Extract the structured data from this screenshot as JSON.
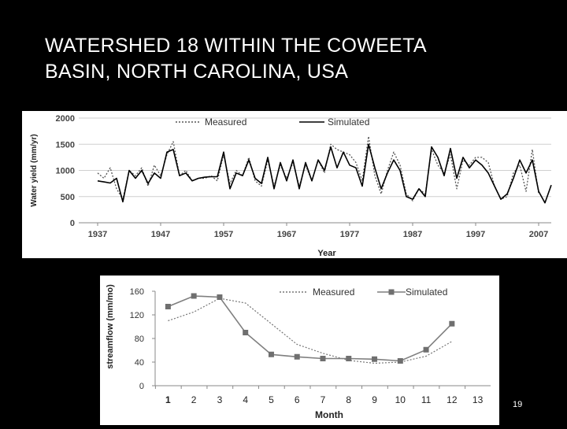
{
  "slide": {
    "title_line1": "WATERSHED 18 WITHIN THE COWEETA",
    "title_line2": "BASIN, NORTH CAROLINA, USA",
    "page_number": "19"
  },
  "chart_data": [
    {
      "type": "line",
      "title": "",
      "xlabel": "Year",
      "ylabel": "Water yield (mm/yr)",
      "xlim": [
        1934,
        2009
      ],
      "ylim": [
        0,
        2000
      ],
      "xticks": [
        1937,
        1947,
        1957,
        1967,
        1977,
        1987,
        1997,
        2007
      ],
      "yticks": [
        0,
        500,
        1000,
        1500,
        2000
      ],
      "grid": true,
      "legend": "top",
      "series": [
        {
          "name": "Measured",
          "style": "dotted",
          "color": "#555555",
          "points": [
            [
              1937,
              950
            ],
            [
              1938,
              850
            ],
            [
              1939,
              1050
            ],
            [
              1940,
              650
            ],
            [
              1941,
              450
            ],
            [
              1942,
              1000
            ],
            [
              1943,
              900
            ],
            [
              1944,
              1050
            ],
            [
              1945,
              700
            ],
            [
              1946,
              1100
            ],
            [
              1947,
              900
            ],
            [
              1948,
              1300
            ],
            [
              1949,
              1550
            ],
            [
              1950,
              900
            ],
            [
              1951,
              1000
            ],
            [
              1952,
              800
            ],
            [
              1953,
              850
            ],
            [
              1954,
              850
            ],
            [
              1955,
              900
            ],
            [
              1956,
              800
            ],
            [
              1957,
              1300
            ],
            [
              1958,
              750
            ],
            [
              1959,
              1000
            ],
            [
              1960,
              900
            ],
            [
              1961,
              1250
            ],
            [
              1962,
              800
            ],
            [
              1963,
              700
            ],
            [
              1964,
              1200
            ],
            [
              1965,
              700
            ],
            [
              1966,
              1100
            ],
            [
              1967,
              850
            ],
            [
              1968,
              1150
            ],
            [
              1969,
              700
            ],
            [
              1970,
              1100
            ],
            [
              1971,
              800
            ],
            [
              1972,
              1200
            ],
            [
              1973,
              950
            ],
            [
              1974,
              1500
            ],
            [
              1975,
              1400
            ],
            [
              1976,
              1350
            ],
            [
              1977,
              1300
            ],
            [
              1978,
              1150
            ],
            [
              1979,
              800
            ],
            [
              1980,
              1650
            ],
            [
              1981,
              900
            ],
            [
              1982,
              550
            ],
            [
              1983,
              1000
            ],
            [
              1984,
              1350
            ],
            [
              1985,
              1100
            ],
            [
              1986,
              550
            ],
            [
              1987,
              420
            ],
            [
              1988,
              650
            ],
            [
              1989,
              550
            ],
            [
              1990,
              1400
            ],
            [
              1991,
              1100
            ],
            [
              1992,
              950
            ],
            [
              1993,
              1300
            ],
            [
              1994,
              650
            ],
            [
              1995,
              1200
            ],
            [
              1996,
              1100
            ],
            [
              1997,
              1250
            ],
            [
              1998,
              1250
            ],
            [
              1999,
              1150
            ],
            [
              2000,
              700
            ],
            [
              2001,
              450
            ],
            [
              2002,
              500
            ],
            [
              2003,
              950
            ],
            [
              2004,
              1100
            ],
            [
              2005,
              600
            ],
            [
              2006,
              1400
            ],
            [
              2007,
              550
            ]
          ]
        },
        {
          "name": "Simulated",
          "style": "solid",
          "color": "#000000",
          "points": [
            [
              1937,
              800
            ],
            [
              1938,
              780
            ],
            [
              1939,
              760
            ],
            [
              1940,
              850
            ],
            [
              1941,
              400
            ],
            [
              1942,
              1000
            ],
            [
              1943,
              850
            ],
            [
              1944,
              1000
            ],
            [
              1945,
              750
            ],
            [
              1946,
              950
            ],
            [
              1947,
              850
            ],
            [
              1948,
              1350
            ],
            [
              1949,
              1400
            ],
            [
              1950,
              900
            ],
            [
              1951,
              950
            ],
            [
              1952,
              800
            ],
            [
              1953,
              850
            ],
            [
              1954,
              870
            ],
            [
              1955,
              880
            ],
            [
              1956,
              880
            ],
            [
              1957,
              1350
            ],
            [
              1958,
              650
            ],
            [
              1959,
              950
            ],
            [
              1960,
              900
            ],
            [
              1961,
              1200
            ],
            [
              1962,
              850
            ],
            [
              1963,
              750
            ],
            [
              1964,
              1250
            ],
            [
              1965,
              650
            ],
            [
              1966,
              1150
            ],
            [
              1967,
              800
            ],
            [
              1968,
              1200
            ],
            [
              1969,
              650
            ],
            [
              1970,
              1150
            ],
            [
              1971,
              800
            ],
            [
              1972,
              1200
            ],
            [
              1973,
              1000
            ],
            [
              1974,
              1450
            ],
            [
              1975,
              1050
            ],
            [
              1976,
              1350
            ],
            [
              1977,
              1100
            ],
            [
              1978,
              1050
            ],
            [
              1979,
              700
            ],
            [
              1980,
              1500
            ],
            [
              1981,
              1050
            ],
            [
              1982,
              650
            ],
            [
              1983,
              950
            ],
            [
              1984,
              1200
            ],
            [
              1985,
              1000
            ],
            [
              1986,
              500
            ],
            [
              1987,
              450
            ],
            [
              1988,
              650
            ],
            [
              1989,
              500
            ],
            [
              1990,
              1450
            ],
            [
              1991,
              1250
            ],
            [
              1992,
              900
            ],
            [
              1993,
              1420
            ],
            [
              1994,
              850
            ],
            [
              1995,
              1250
            ],
            [
              1996,
              1050
            ],
            [
              1997,
              1200
            ],
            [
              1998,
              1100
            ],
            [
              1999,
              950
            ],
            [
              2000,
              700
            ],
            [
              2001,
              450
            ],
            [
              2002,
              550
            ],
            [
              2003,
              850
            ],
            [
              2004,
              1200
            ],
            [
              2005,
              950
            ],
            [
              2006,
              1200
            ],
            [
              2007,
              600
            ],
            [
              2008,
              380
            ],
            [
              2009,
              720
            ]
          ]
        }
      ]
    },
    {
      "type": "line",
      "title": "",
      "xlabel": "Month",
      "ylabel": "streamflow (mm/mo)",
      "xlim": [
        0.5,
        13.5
      ],
      "ylim": [
        0,
        160
      ],
      "xticks": [
        1,
        2,
        3,
        4,
        5,
        6,
        7,
        8,
        9,
        10,
        11,
        12,
        13
      ],
      "yticks": [
        0,
        40,
        80,
        120,
        160
      ],
      "grid": false,
      "legend": "top",
      "series": [
        {
          "name": "Measured",
          "style": "dotted",
          "color": "#777777",
          "points": [
            [
              1,
              110
            ],
            [
              2,
              125
            ],
            [
              3,
              148
            ],
            [
              4,
              140
            ],
            [
              5,
              105
            ],
            [
              6,
              70
            ],
            [
              7,
              55
            ],
            [
              8,
              43
            ],
            [
              9,
              38
            ],
            [
              10,
              40
            ],
            [
              11,
              50
            ],
            [
              12,
              75
            ]
          ]
        },
        {
          "name": "Simulated",
          "style": "solid-square",
          "color": "#7f7f7f",
          "points": [
            [
              1,
              134
            ],
            [
              2,
              152
            ],
            [
              3,
              150
            ],
            [
              4,
              90
            ],
            [
              5,
              53
            ],
            [
              6,
              49
            ],
            [
              7,
              46
            ],
            [
              8,
              46
            ],
            [
              9,
              45
            ],
            [
              10,
              42
            ],
            [
              11,
              61
            ],
            [
              12,
              105
            ]
          ]
        }
      ]
    }
  ]
}
